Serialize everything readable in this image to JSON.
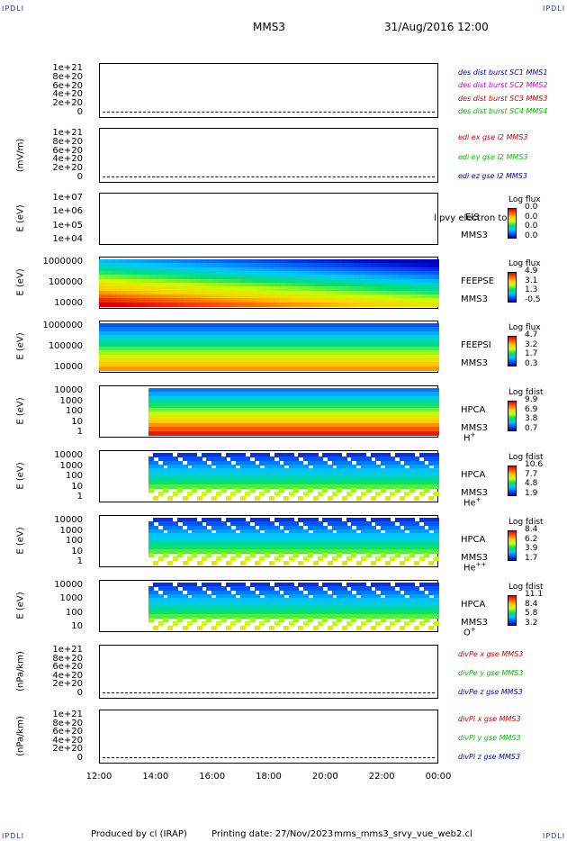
{
  "corners": {
    "tl": "IPDLI",
    "tr": "IPDLI",
    "bl": "IPDLI",
    "br": "IPDLI"
  },
  "header": {
    "title": "MMS3",
    "date": "31/Aug/2016 12:00"
  },
  "footer": {
    "produced": "Produced by cl (IRAP)",
    "printing": "Printing date: 27/Nov/2023",
    "file": "mms_mms3_srvy_vue_web2.cl"
  },
  "colors": {
    "red": "#d00000",
    "magenta": "#d000d0",
    "green": "#00c000",
    "blue": "#0000c0"
  },
  "chart_data": {
    "type": "heatmap",
    "x_axis": {
      "ticks": [
        "12:00",
        "14:00",
        "16:00",
        "18:00",
        "20:00",
        "22:00",
        "00:00"
      ]
    },
    "panels": [
      {
        "type": "line",
        "ylabel": "",
        "yticks": [
          "1e+21",
          "8e+20",
          "6e+20",
          "4e+20",
          "2e+20",
          "0"
        ],
        "legend": [
          {
            "text": "des dist burst SC1 MMS1",
            "color": "blue"
          },
          {
            "text": "des dist burst SC2 MMS2",
            "color": "magenta"
          },
          {
            "text": "des dist burst SC3 MMS3",
            "color": "red"
          },
          {
            "text": "des dist burst SC4 MMS4",
            "color": "green"
          }
        ]
      },
      {
        "type": "line",
        "ylabel": "(mV/m)",
        "yticks": [
          "1e+21",
          "8e+20",
          "6e+20",
          "4e+20",
          "2e+20",
          "0"
        ],
        "legend": [
          {
            "text": "edi ex gse l2 MMS3",
            "color": "red"
          },
          {
            "text": "edi ey gse l2 MMS3",
            "color": "green"
          },
          {
            "text": "edi ez gse l2 MMS3",
            "color": "blue"
          }
        ]
      },
      {
        "type": "heatmap",
        "ylabel": "E (eV)",
        "yticks": [
          "1e+07",
          "1e+06",
          "1e+05",
          "1e+04"
        ],
        "log_scale": true,
        "instrument": "EIS",
        "sc": "MMS3",
        "overlay": "l pvy electron to",
        "cbar_title": "Log flux",
        "cbar_ticks": [
          "0.0",
          "0.0",
          "0.0",
          "0.0"
        ],
        "coverage": "none"
      },
      {
        "type": "heatmap",
        "ylabel": "E (eV)",
        "yticks": [
          "1000000",
          "100000",
          "10000"
        ],
        "log_scale": true,
        "instrument": "FEEPSE",
        "sc": "MMS3",
        "cbar_title": "Log flux",
        "cbar_ticks": [
          "4.9",
          "3.1",
          "1.3",
          "-0.5"
        ],
        "coverage": {
          "start_hour": 12.0,
          "end_hour": 24.0
        }
      },
      {
        "type": "heatmap",
        "ylabel": "E (eV)",
        "yticks": [
          "1000000",
          "100000",
          "10000"
        ],
        "log_scale": true,
        "instrument": "FEEPSI",
        "sc": "MMS3",
        "cbar_title": "Log flux",
        "cbar_ticks": [
          "4.7",
          "3.2",
          "1.7",
          "0.3"
        ],
        "coverage": {
          "start_hour": 12.0,
          "end_hour": 24.0
        }
      },
      {
        "type": "heatmap",
        "ylabel": "E (eV)",
        "yticks": [
          "10000",
          "1000",
          "100",
          "10",
          "1"
        ],
        "log_scale": true,
        "instrument": "HPCA",
        "sc": "MMS3",
        "species": "H",
        "charge": "+",
        "cbar_title": "Log fdist",
        "cbar_ticks": [
          "9.9",
          "6.9",
          "3.8",
          "0.7"
        ],
        "coverage": {
          "start_hour": 13.75,
          "end_hour": 24.0
        }
      },
      {
        "type": "heatmap",
        "ylabel": "E (eV)",
        "yticks": [
          "10000",
          "1000",
          "100",
          "10",
          "1"
        ],
        "log_scale": true,
        "instrument": "HPCA",
        "sc": "MMS3",
        "species": "He",
        "charge": "+",
        "cbar_title": "Log fdist",
        "cbar_ticks": [
          "10.6",
          "7.7",
          "4.8",
          "1.9"
        ],
        "coverage": {
          "start_hour": 13.75,
          "end_hour": 24.0
        }
      },
      {
        "type": "heatmap",
        "ylabel": "E (eV)",
        "yticks": [
          "10000",
          "1000",
          "100",
          "10",
          "1"
        ],
        "log_scale": true,
        "instrument": "HPCA",
        "sc": "MMS3",
        "species": "He",
        "charge": "++",
        "cbar_title": "Log fdist",
        "cbar_ticks": [
          "8.4",
          "6.2",
          "3.9",
          "1.7"
        ],
        "coverage": {
          "start_hour": 13.75,
          "end_hour": 24.0
        }
      },
      {
        "type": "heatmap",
        "ylabel": "E (eV)",
        "yticks": [
          "10000",
          "1000",
          "100",
          "10"
        ],
        "log_scale": true,
        "instrument": "HPCA",
        "sc": "MMS3",
        "species": "O",
        "charge": "+",
        "cbar_title": "Log fdist",
        "cbar_ticks": [
          "11.1",
          "8.4",
          "5.8",
          "3.2"
        ],
        "coverage": {
          "start_hour": 13.75,
          "end_hour": 24.0
        }
      },
      {
        "type": "line",
        "ylabel": "(nPa/km)",
        "yticks": [
          "1e+21",
          "8e+20",
          "6e+20",
          "4e+20",
          "2e+20",
          "0"
        ],
        "legend": [
          {
            "text": "divPe x gse MMS3",
            "color": "red"
          },
          {
            "text": "divPe y gse MMS3",
            "color": "green"
          },
          {
            "text": "divPe z gse MMS3",
            "color": "blue"
          }
        ]
      },
      {
        "type": "line",
        "ylabel": "(nPa/km)",
        "yticks": [
          "1e+21",
          "8e+20",
          "6e+20",
          "4e+20",
          "2e+20",
          "0"
        ],
        "legend": [
          {
            "text": "divPi x gse MMS3",
            "color": "red"
          },
          {
            "text": "divPi y gse MMS3",
            "color": "green"
          },
          {
            "text": "divPi z gse MMS3",
            "color": "blue"
          }
        ]
      }
    ]
  }
}
